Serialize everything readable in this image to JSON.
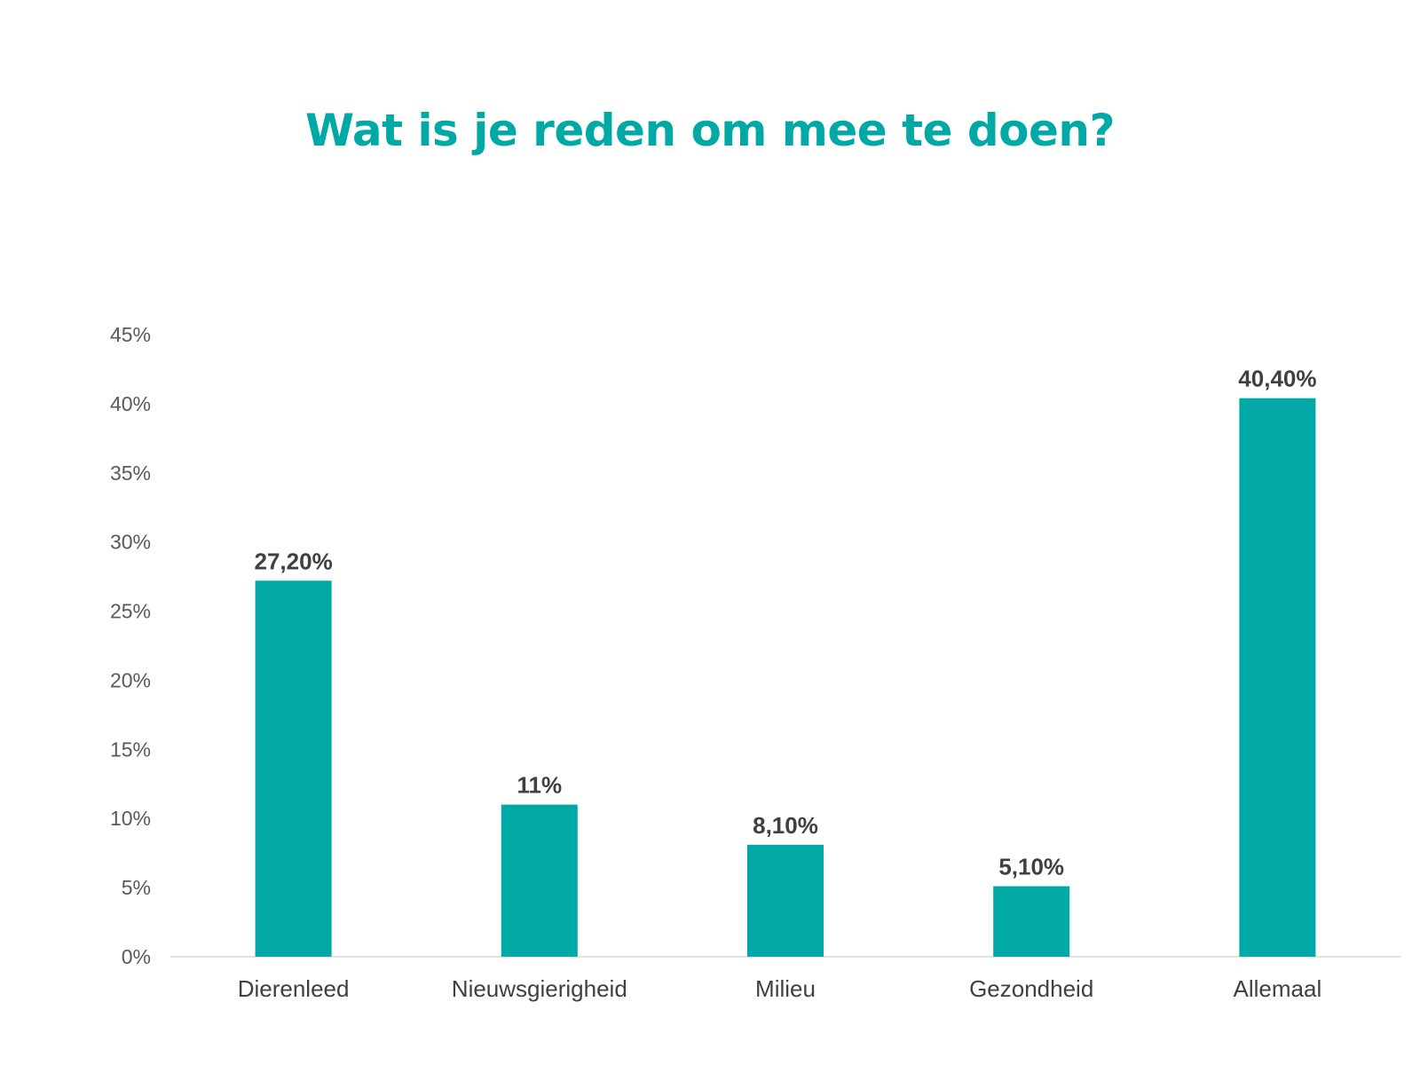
{
  "colors": {
    "accent": "#00A9A5",
    "axis": "#D9D9D9",
    "text": "#404040",
    "tick_text": "#595959"
  },
  "chart_data": {
    "type": "bar",
    "title": "Wat is je reden om mee te doen?",
    "xlabel": "",
    "ylabel": "",
    "categories": [
      "Dierenleed",
      "Nieuwsgierigheid",
      "Milieu",
      "Gezondheid",
      "Allemaal"
    ],
    "values": [
      27.2,
      11,
      8.1,
      5.1,
      40.4
    ],
    "data_labels": [
      "27,20%",
      "11%",
      "8,10%",
      "5,10%",
      "40,40%"
    ],
    "ylim": [
      0,
      45
    ],
    "yticks": [
      0,
      5,
      10,
      15,
      20,
      25,
      30,
      35,
      40,
      45
    ],
    "ytick_labels": [
      "0%",
      "5%",
      "10%",
      "15%",
      "20%",
      "25%",
      "30%",
      "35%",
      "40%",
      "45%"
    ],
    "grid": false,
    "legend": "none"
  }
}
